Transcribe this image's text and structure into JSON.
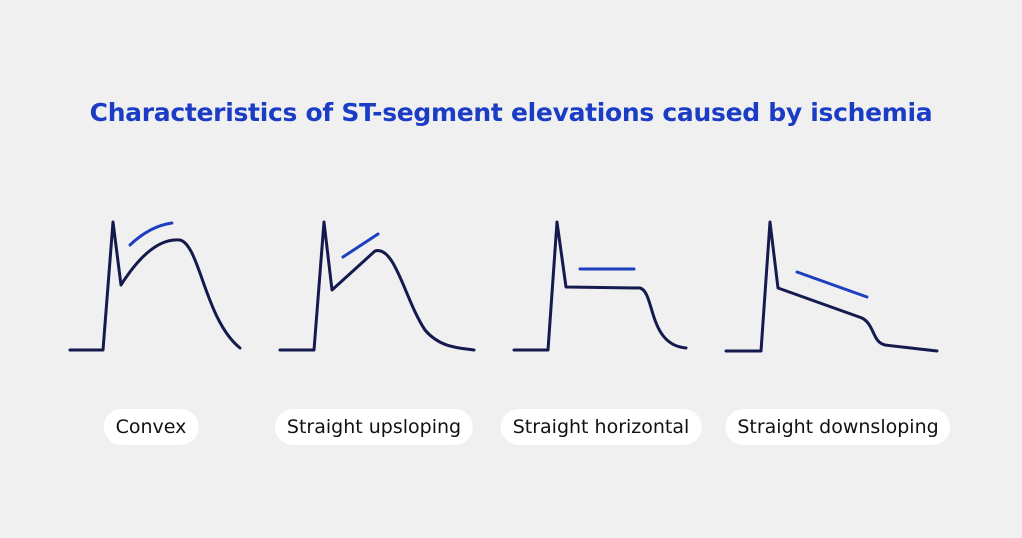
{
  "title": "Characteristics of ST-segment elevations caused by ischemia",
  "panels": [
    {
      "label": "Convex"
    },
    {
      "label": "Straight upsloping"
    },
    {
      "label": "Straight horizontal"
    },
    {
      "label": "Straight downsloping"
    }
  ]
}
